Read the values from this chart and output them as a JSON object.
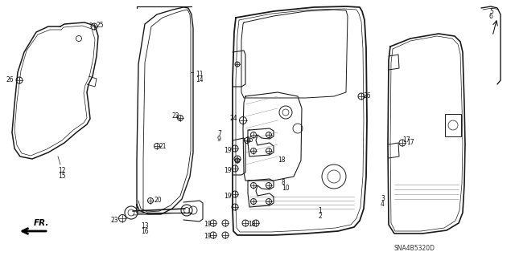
{
  "background_color": "#ffffff",
  "diagram_code": "SNA4B5320D",
  "line_color": "#1a1a1a",
  "label_color": "#111111"
}
